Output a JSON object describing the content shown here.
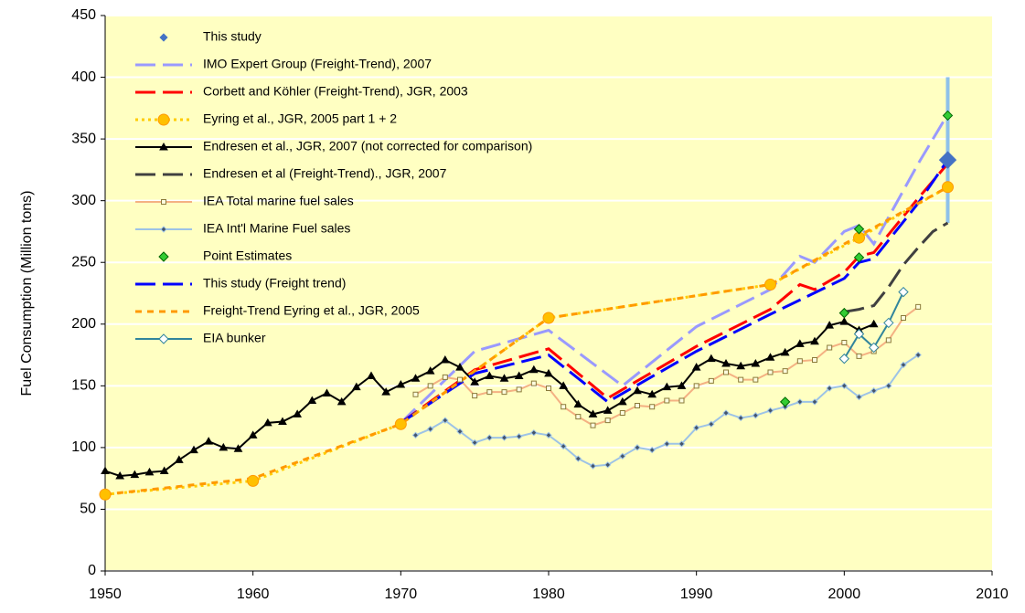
{
  "chart_data": {
    "type": "line",
    "y_label": "Fuel Consumption (Million tons)",
    "xlim": [
      1950,
      2010
    ],
    "xticks": [
      1950,
      1960,
      1970,
      1980,
      1990,
      2000,
      2010
    ],
    "ylim": [
      0,
      450
    ],
    "yticks": [
      0,
      50,
      100,
      150,
      200,
      250,
      300,
      350,
      400,
      450
    ],
    "grid": true,
    "legend": "upper left",
    "series": [
      {
        "name": "This study",
        "color": "#4472c4",
        "marker_color": "#4472c4",
        "line_style": "none",
        "marker": "diamond",
        "x": [
          2007
        ],
        "values": [
          333
        ],
        "lower": [
          282
        ],
        "upper": [
          400
        ],
        "error_color": "#8ec1ea"
      },
      {
        "name": "IMO Expert Group (Freight-Trend), 2007",
        "color": "#9999ff",
        "marker_color": "#9999ff",
        "line_style": "dashed",
        "marker": "none",
        "x": [
          1970,
          1975,
          1980,
          1985,
          1990,
          1995,
          1997,
          1998,
          2000,
          2001,
          2002,
          2005,
          2007
        ],
        "values": [
          120,
          178,
          195,
          150,
          198,
          228,
          255,
          250,
          275,
          280,
          265,
          330,
          370
        ]
      },
      {
        "name": "Corbett and Köhler (Freight-Trend), JGR, 2003",
        "color": "#ff0000",
        "marker_color": "#ff0000",
        "line_style": "dashed",
        "marker": "none",
        "x": [
          1970,
          1975,
          1980,
          1984,
          1990,
          1995,
          1997,
          1998,
          2000,
          2001,
          2002,
          2005,
          2007
        ],
        "values": [
          120,
          163,
          180,
          140,
          182,
          212,
          232,
          228,
          242,
          255,
          258,
          302,
          330
        ]
      },
      {
        "name": "Eyring et al., JGR, 2005 part 1 + 2",
        "color": "#ffcc00",
        "marker_color": "#ffc000",
        "line_style": "dotted",
        "marker": "circle",
        "x": [
          1950,
          1960,
          1970,
          1980,
          1995,
          2001,
          2007
        ],
        "values": [
          62,
          73,
          119,
          205,
          232,
          270,
          311
        ]
      },
      {
        "name": "Endresen et al., JGR, 2007 (not corrected for comparison)",
        "color": "#000000",
        "marker_color": "#000000",
        "line_style": "solid",
        "marker": "triangle",
        "x": [
          1950,
          1951,
          1952,
          1953,
          1954,
          1955,
          1956,
          1957,
          1958,
          1959,
          1960,
          1961,
          1962,
          1963,
          1964,
          1965,
          1966,
          1967,
          1968,
          1969,
          1970,
          1971,
          1972,
          1973,
          1974,
          1975,
          1976,
          1977,
          1978,
          1979,
          1980,
          1981,
          1982,
          1983,
          1984,
          1985,
          1986,
          1987,
          1988,
          1989,
          1990,
          1991,
          1992,
          1993,
          1994,
          1995,
          1996,
          1997,
          1998,
          1999,
          2000,
          2001,
          2002
        ],
        "values": [
          81,
          77,
          78,
          80,
          81,
          90,
          98,
          105,
          100,
          99,
          110,
          120,
          121,
          127,
          138,
          144,
          137,
          149,
          158,
          145,
          151,
          156,
          162,
          171,
          165,
          153,
          158,
          156,
          158,
          163,
          160,
          150,
          135,
          127,
          130,
          137,
          146,
          143,
          149,
          150,
          165,
          172,
          168,
          166,
          168,
          173,
          177,
          184,
          186,
          199,
          202,
          195,
          200
        ]
      },
      {
        "name": "Endresen et al (Freight-Trend)., JGR, 2007",
        "color": "#404040",
        "marker_color": "#404040",
        "line_style": "dashed",
        "marker": "none",
        "x": [
          2000,
          2001,
          2002,
          2003,
          2004,
          2005,
          2006,
          2007
        ],
        "values": [
          210,
          212,
          215,
          230,
          248,
          262,
          275,
          282
        ]
      },
      {
        "name": "IEA Total marine fuel sales",
        "color": "#f4b183",
        "marker_color": "#8a7a3a",
        "line_style": "solid",
        "marker": "square",
        "x": [
          1971,
          1972,
          1973,
          1974,
          1975,
          1976,
          1977,
          1978,
          1979,
          1980,
          1981,
          1982,
          1983,
          1984,
          1985,
          1986,
          1987,
          1988,
          1989,
          1990,
          1991,
          1992,
          1993,
          1994,
          1995,
          1996,
          1997,
          1998,
          1999,
          2000,
          2001,
          2002,
          2003,
          2004,
          2005
        ],
        "values": [
          143,
          150,
          157,
          155,
          142,
          145,
          145,
          147,
          152,
          148,
          133,
          125,
          118,
          122,
          128,
          134,
          133,
          138,
          138,
          150,
          154,
          161,
          155,
          155,
          161,
          162,
          170,
          171,
          181,
          185,
          174,
          178,
          187,
          205,
          214
        ]
      },
      {
        "name": "IEA Int'l Marine Fuel sales",
        "color": "#9dc3e6",
        "marker_color": "#44546a",
        "line_style": "solid",
        "marker": "diamond",
        "x": [
          1971,
          1972,
          1973,
          1974,
          1975,
          1976,
          1977,
          1978,
          1979,
          1980,
          1981,
          1982,
          1983,
          1984,
          1985,
          1986,
          1987,
          1988,
          1989,
          1990,
          1991,
          1992,
          1993,
          1994,
          1995,
          1996,
          1997,
          1998,
          1999,
          2000,
          2001,
          2002,
          2003,
          2004,
          2005
        ],
        "values": [
          110,
          115,
          122,
          113,
          104,
          108,
          108,
          109,
          112,
          110,
          101,
          91,
          85,
          86,
          93,
          100,
          98,
          103,
          103,
          116,
          119,
          128,
          124,
          126,
          130,
          133,
          137,
          137,
          148,
          150,
          141,
          146,
          150,
          167,
          175
        ]
      },
      {
        "name": "Point Estimates",
        "color": "#33cc33",
        "marker_color": "#33cc33",
        "line_style": "none",
        "marker": "diamond",
        "x": [
          1996,
          2000,
          2001,
          2001,
          2007
        ],
        "values": [
          137,
          209,
          277,
          254,
          369
        ]
      },
      {
        "name": "This study (Freight trend)",
        "color": "#0000ff",
        "marker_color": "#0000ff",
        "line_style": "dashed",
        "marker": "none",
        "x": [
          1970,
          1975,
          1980,
          1984,
          1990,
          1995,
          2000,
          2001,
          2002,
          2005,
          2007
        ],
        "values": [
          120,
          160,
          175,
          137,
          178,
          208,
          237,
          250,
          253,
          298,
          333
        ]
      },
      {
        "name": "Freight-Trend Eyring et al., JGR, 2005",
        "color": "#ff9900",
        "marker_color": "#ff9900",
        "line_style": "shortdash",
        "marker": "none",
        "x": [
          1950,
          1960,
          1970,
          1980,
          1995,
          2007
        ],
        "values": [
          62,
          75,
          119,
          205,
          232,
          311
        ]
      },
      {
        "name": "EIA bunker",
        "color": "#31859c",
        "marker_color": "#ffffff",
        "line_style": "solid",
        "marker": "diamond",
        "x": [
          2000,
          2001,
          2002,
          2003,
          2004
        ],
        "values": [
          172,
          192,
          181,
          201,
          226
        ]
      }
    ]
  }
}
